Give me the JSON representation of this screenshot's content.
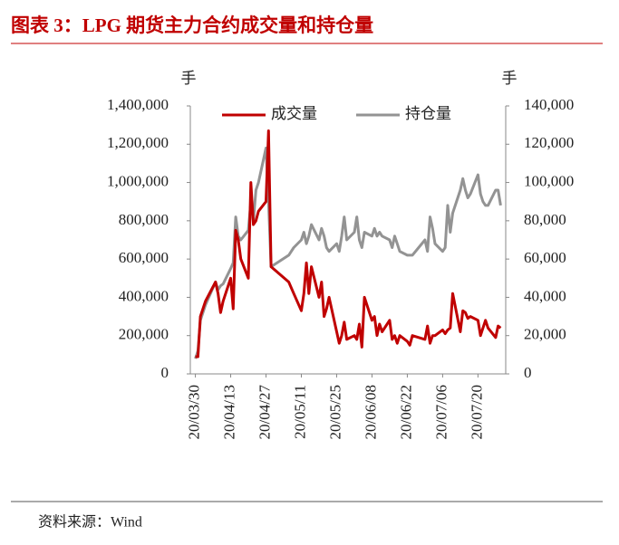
{
  "chart_data": {
    "type": "line",
    "title": "图表 3：LPG 期货主力合约成交量和持仓量",
    "source": "资料来源：Wind",
    "ylabel": "手",
    "y2label": "手",
    "x": [
      "20/03/30",
      "20/03/31",
      "20/04/01",
      "20/04/03",
      "20/04/07",
      "20/04/08",
      "20/04/09",
      "20/04/10",
      "20/04/13",
      "20/04/14",
      "20/04/15",
      "20/04/16",
      "20/04/17",
      "20/04/20",
      "20/04/21",
      "20/04/22",
      "20/04/23",
      "20/04/24",
      "20/04/27",
      "20/04/28",
      "20/04/29",
      "20/05/06",
      "20/05/08",
      "20/05/11",
      "20/05/12",
      "20/05/13",
      "20/05/14",
      "20/05/15",
      "20/05/18",
      "20/05/19",
      "20/05/20",
      "20/05/21",
      "20/05/22",
      "20/05/25",
      "20/05/26",
      "20/05/27",
      "20/05/28",
      "20/05/29",
      "20/06/01",
      "20/06/02",
      "20/06/03",
      "20/06/04",
      "20/06/05",
      "20/06/08",
      "20/06/09",
      "20/06/10",
      "20/06/11",
      "20/06/12",
      "20/06/15",
      "20/06/16",
      "20/06/17",
      "20/06/18",
      "20/06/19",
      "20/06/22",
      "20/06/23",
      "20/06/24",
      "20/06/29",
      "20/06/30",
      "20/07/01",
      "20/07/02",
      "20/07/03",
      "20/07/06",
      "20/07/07",
      "20/07/08",
      "20/07/09",
      "20/07/10",
      "20/07/13",
      "20/07/14",
      "20/07/15",
      "20/07/16",
      "20/07/17",
      "20/07/20",
      "20/07/21",
      "20/07/22",
      "20/07/23",
      "20/07/24",
      "20/07/27",
      "20/07/28",
      "20/07/29"
    ],
    "xlim": [
      "20/03/28",
      "20/07/31"
    ],
    "xticks": [
      "20/03/30",
      "20/04/13",
      "20/04/27",
      "20/05/11",
      "20/05/25",
      "20/06/08",
      "20/06/22",
      "20/07/06",
      "20/07/20"
    ],
    "series": [
      {
        "name": "成交量",
        "color": "#c00000",
        "axis": "y",
        "values": [
          90000,
          90000,
          300000,
          380000,
          480000,
          420000,
          320000,
          380000,
          500000,
          340000,
          750000,
          700000,
          600000,
          500000,
          1000000,
          780000,
          800000,
          850000,
          900000,
          1270000,
          560000,
          480000,
          420000,
          330000,
          420000,
          580000,
          420000,
          560000,
          400000,
          480000,
          300000,
          340000,
          400000,
          220000,
          160000,
          200000,
          270000,
          180000,
          200000,
          180000,
          260000,
          140000,
          400000,
          280000,
          300000,
          200000,
          260000,
          220000,
          280000,
          180000,
          200000,
          160000,
          200000,
          170000,
          150000,
          200000,
          180000,
          250000,
          160000,
          200000,
          200000,
          230000,
          210000,
          230000,
          240000,
          420000,
          220000,
          330000,
          320000,
          290000,
          300000,
          280000,
          200000,
          240000,
          280000,
          240000,
          190000,
          250000,
          240000
        ]
      },
      {
        "name": "持仓量",
        "color": "#939393",
        "axis": "y2",
        "values": [
          8000,
          12000,
          28000,
          36000,
          48000,
          44000,
          46000,
          47000,
          55000,
          58000,
          82000,
          72000,
          70000,
          75000,
          90000,
          80000,
          96000,
          100000,
          118000,
          90000,
          56000,
          62000,
          66000,
          70000,
          74000,
          68000,
          72000,
          78000,
          70000,
          76000,
          72000,
          66000,
          64000,
          68000,
          64000,
          72000,
          82000,
          70000,
          74000,
          82000,
          70000,
          66000,
          74000,
          72000,
          76000,
          72000,
          74000,
          72000,
          70000,
          66000,
          72000,
          68000,
          64000,
          62000,
          62000,
          62000,
          70000,
          64000,
          82000,
          76000,
          68000,
          64000,
          66000,
          88000,
          74000,
          84000,
          96000,
          102000,
          96000,
          92000,
          94000,
          104000,
          94000,
          90000,
          88000,
          88000,
          96000,
          96000,
          88000
        ]
      }
    ],
    "ylim": [
      0,
      1400000
    ],
    "yticks": [
      0,
      {
        "value": 200000,
        "label": "200,000"
      },
      {
        "value": 400000,
        "label": "400,000"
      },
      {
        "value": 600000,
        "label": "600,000"
      },
      {
        "value": 800000,
        "label": "800,000"
      },
      {
        "value": 1000000,
        "label": "1,000,000"
      },
      {
        "value": 1200000,
        "label": "1,200,000"
      },
      {
        "value": 1400000,
        "label": "1,400,000"
      }
    ],
    "y2lim": [
      0,
      140000
    ],
    "y2ticks": [
      0,
      {
        "value": 20000,
        "label": "20,000"
      },
      {
        "value": 40000,
        "label": "40,000"
      },
      {
        "value": 60000,
        "label": "60,000"
      },
      {
        "value": 80000,
        "label": "80,000"
      },
      {
        "value": 100000,
        "label": "100,000"
      },
      {
        "value": 120000,
        "label": "120,000"
      },
      {
        "value": 140000,
        "label": "140,000"
      }
    ],
    "legend": "top"
  }
}
